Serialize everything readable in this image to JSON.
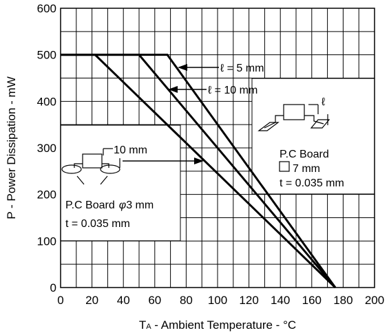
{
  "chart_data": {
    "type": "line",
    "xlabel": "T A -  Ambient Temperature  - °C",
    "xlabel_main": "T",
    "xlabel_sub": "A",
    "xlabel_rest": " -  Ambient Temperature  - °C",
    "ylabel": "P -  Power Dissipation  - mW",
    "xlim": [
      0,
      200
    ],
    "ylim": [
      0,
      600
    ],
    "x_ticks": [
      "0",
      "20",
      "40",
      "60",
      "80",
      "100",
      "120",
      "140",
      "160",
      "180",
      "200"
    ],
    "y_ticks": [
      "0",
      "100",
      "200",
      "300",
      "400",
      "500",
      "600"
    ],
    "grid": true,
    "series": [
      {
        "name": "ℓ = 5 mm",
        "x": [
          0,
          68,
          175
        ],
        "y": [
          500,
          500,
          0
        ]
      },
      {
        "name": "ℓ = 10 mm",
        "x": [
          0,
          50,
          175
        ],
        "y": [
          500,
          500,
          0
        ]
      },
      {
        "name": "P.C Board φ3 mm",
        "x": [
          0,
          22,
          175
        ],
        "y": [
          500,
          500,
          0
        ]
      }
    ],
    "annotations": {
      "l5": "ℓ = 5 mm",
      "l10": "ℓ = 10 mm",
      "pcb_square_line1": "P.C Board",
      "pcb_square_line2": "7 mm",
      "pcb_square_line3": "t = 0.035 mm",
      "pcb_phi_line1": "P.C Board",
      "pcb_phi_symbol": "φ",
      "pcb_phi_value": "3 mm",
      "pcb_phi_line2": "t = 0.035 mm",
      "dim_10mm": "10 mm",
      "ell": "ℓ"
    }
  }
}
